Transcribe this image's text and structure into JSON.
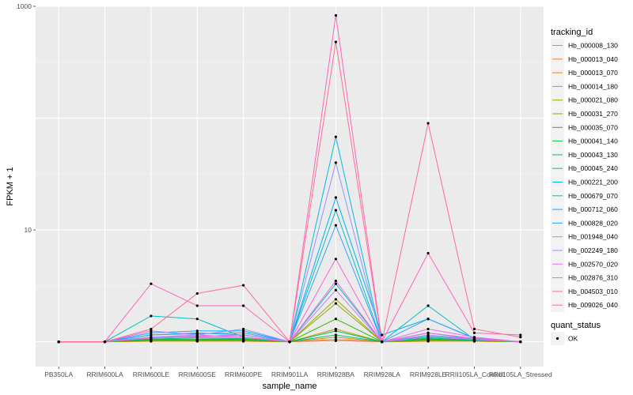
{
  "chart_data": {
    "type": "line",
    "xlabel": "sample_name",
    "ylabel": "FPKM + 1",
    "y_scale": "log10",
    "ylim": [
      0.6,
      1000
    ],
    "y_ticks": [
      {
        "value": 10,
        "label": "10"
      },
      {
        "value": 1000,
        "label": "1000"
      }
    ],
    "grid": true,
    "legend_position": "right",
    "categories": [
      "PB350LA",
      "RRIM600LA",
      "RRIM600LE",
      "RRIM600SE",
      "RRIM600PE",
      "RRIM901LA",
      "RRIM928BA",
      "RRIM928LA",
      "RRIM928LE",
      "RRII105LA_Control",
      "RRII105LA_Stressed"
    ],
    "category_labels": [
      "PB350LA",
      "RRIM600LA",
      "RRIM600LE",
      "RRIM600SE",
      "RRIM600PE",
      "RRIM901LA",
      "RRIM928BA",
      "RRIM928LA",
      "RRIM928LE",
      "RRII105LA_Control",
      "RRII105LA_Stressed"
    ],
    "colour_legend": {
      "title": "tracking_id",
      "items": [
        {
          "label": "Hb_000008_130",
          "color": "#F8766D"
        },
        {
          "label": "Hb_000013_040",
          "color": "#EA8331"
        },
        {
          "label": "Hb_000013_070",
          "color": "#D89000"
        },
        {
          "label": "Hb_000014_180",
          "color": "#C09B00"
        },
        {
          "label": "Hb_000021_080",
          "color": "#A3A500"
        },
        {
          "label": "Hb_000031_270",
          "color": "#7CAE00"
        },
        {
          "label": "Hb_000035_070",
          "color": "#39B600"
        },
        {
          "label": "Hb_000041_140",
          "color": "#00BB4E"
        },
        {
          "label": "Hb_000043_130",
          "color": "#00BF7D"
        },
        {
          "label": "Hb_000045_240",
          "color": "#00C1A3"
        },
        {
          "label": "Hb_000221_200",
          "color": "#00BFC4"
        },
        {
          "label": "Hb_000679_070",
          "color": "#00BAE0"
        },
        {
          "label": "Hb_000712_060",
          "color": "#00B0F6"
        },
        {
          "label": "Hb_000828_020",
          "color": "#35A2FF"
        },
        {
          "label": "Hb_001948_040",
          "color": "#9590FF"
        },
        {
          "label": "Hb_002249_180",
          "color": "#C77CFF"
        },
        {
          "label": "Hb_002570_020",
          "color": "#E76BF3"
        },
        {
          "label": "Hb_002876_310",
          "color": "#FA62DB"
        },
        {
          "label": "Hb_004503_010",
          "color": "#FF62BC"
        },
        {
          "label": "Hb_009026_040",
          "color": "#FF6C91"
        }
      ]
    },
    "shape_legend": {
      "title": "quant_status",
      "items": [
        {
          "label": "OK",
          "shape": "point"
        }
      ]
    },
    "series": [
      {
        "name": "Hb_000008_130",
        "color": "#F8766D",
        "values": [
          1,
          1,
          1.01,
          1.01,
          1.01,
          1,
          1.02,
          1,
          1.01,
          1.01,
          1
        ]
      },
      {
        "name": "Hb_000013_040",
        "color": "#EA8331",
        "values": [
          1,
          1,
          1.02,
          1.02,
          1.01,
          1,
          1.05,
          1,
          1.02,
          1.01,
          1
        ]
      },
      {
        "name": "Hb_000013_070",
        "color": "#D89000",
        "values": [
          1,
          1,
          1.01,
          1.01,
          1.02,
          1,
          1.1,
          1,
          1.01,
          1.02,
          1
        ]
      },
      {
        "name": "Hb_000014_180",
        "color": "#C09B00",
        "values": [
          1,
          1,
          1.03,
          1.02,
          1.03,
          1,
          1.3,
          1,
          1.03,
          1.01,
          1
        ]
      },
      {
        "name": "Hb_000021_080",
        "color": "#A3A500",
        "values": [
          1,
          1,
          1.02,
          1.03,
          1.02,
          1,
          2.4,
          1,
          1.04,
          1.02,
          1
        ]
      },
      {
        "name": "Hb_000031_270",
        "color": "#7CAE00",
        "values": [
          1,
          1,
          1.04,
          1.03,
          1.05,
          1,
          2.2,
          1,
          1.03,
          1.02,
          1
        ]
      },
      {
        "name": "Hb_000035_070",
        "color": "#39B600",
        "values": [
          1,
          1,
          1.03,
          1.04,
          1.04,
          1,
          1.6,
          1,
          1.05,
          1.03,
          1
        ]
      },
      {
        "name": "Hb_000041_140",
        "color": "#00BB4E",
        "values": [
          1,
          1,
          1.05,
          1.05,
          1.06,
          1,
          1.25,
          1,
          1.06,
          1.03,
          1
        ]
      },
      {
        "name": "Hb_000043_130",
        "color": "#00BF7D",
        "values": [
          1,
          1,
          1.06,
          1.08,
          1.07,
          1,
          1.15,
          1,
          1.08,
          1.04,
          1
        ]
      },
      {
        "name": "Hb_000045_240",
        "color": "#00C1A3",
        "values": [
          1,
          1,
          1.1,
          1.12,
          1.15,
          1,
          3.3,
          1,
          1.12,
          1.05,
          1
        ]
      },
      {
        "name": "Hb_000221_200",
        "color": "#00BFC4",
        "values": [
          1,
          1,
          1.7,
          1.6,
          1.1,
          1,
          15,
          1,
          2.1,
          1.05,
          1
        ]
      },
      {
        "name": "Hb_000679_070",
        "color": "#00BAE0",
        "values": [
          1,
          1,
          1.15,
          1.2,
          1.15,
          1,
          68,
          1,
          1.2,
          1.06,
          1
        ]
      },
      {
        "name": "Hb_000712_060",
        "color": "#00B0F6",
        "values": [
          1,
          1,
          1.2,
          1.25,
          1.25,
          1,
          19.5,
          1.15,
          1.6,
          1.08,
          1
        ]
      },
      {
        "name": "Hb_000828_020",
        "color": "#35A2FF",
        "values": [
          1,
          1,
          1.15,
          1.18,
          1.2,
          1,
          11,
          1,
          1.6,
          1.07,
          1
        ]
      },
      {
        "name": "Hb_001948_040",
        "color": "#9590FF",
        "values": [
          1,
          1,
          1.1,
          1.15,
          1.3,
          1,
          40,
          1,
          1.15,
          1.06,
          1
        ]
      },
      {
        "name": "Hb_002249_180",
        "color": "#C77CFF",
        "values": [
          1,
          1,
          1.1,
          1.12,
          1.15,
          1,
          2.9,
          1,
          1.1,
          1.05,
          1
        ]
      },
      {
        "name": "Hb_002570_020",
        "color": "#E76BF3",
        "values": [
          1,
          1,
          1.25,
          1.15,
          1.1,
          1,
          3.5,
          1,
          1.3,
          1.1,
          1
        ]
      },
      {
        "name": "Hb_002876_310",
        "color": "#FA62DB",
        "values": [
          1,
          1,
          1.08,
          1.1,
          1.1,
          1,
          5.5,
          1,
          1.2,
          1.07,
          1
        ]
      },
      {
        "name": "Hb_004503_010",
        "color": "#FF62BC",
        "values": [
          1,
          1,
          3.3,
          2.1,
          2.1,
          1,
          830,
          1,
          6.2,
          1.2,
          1.15
        ]
      },
      {
        "name": "Hb_009026_040",
        "color": "#FF6C91",
        "values": [
          1,
          1,
          1.3,
          2.7,
          3.2,
          1,
          480,
          1,
          90,
          1.3,
          1.1
        ]
      }
    ]
  }
}
